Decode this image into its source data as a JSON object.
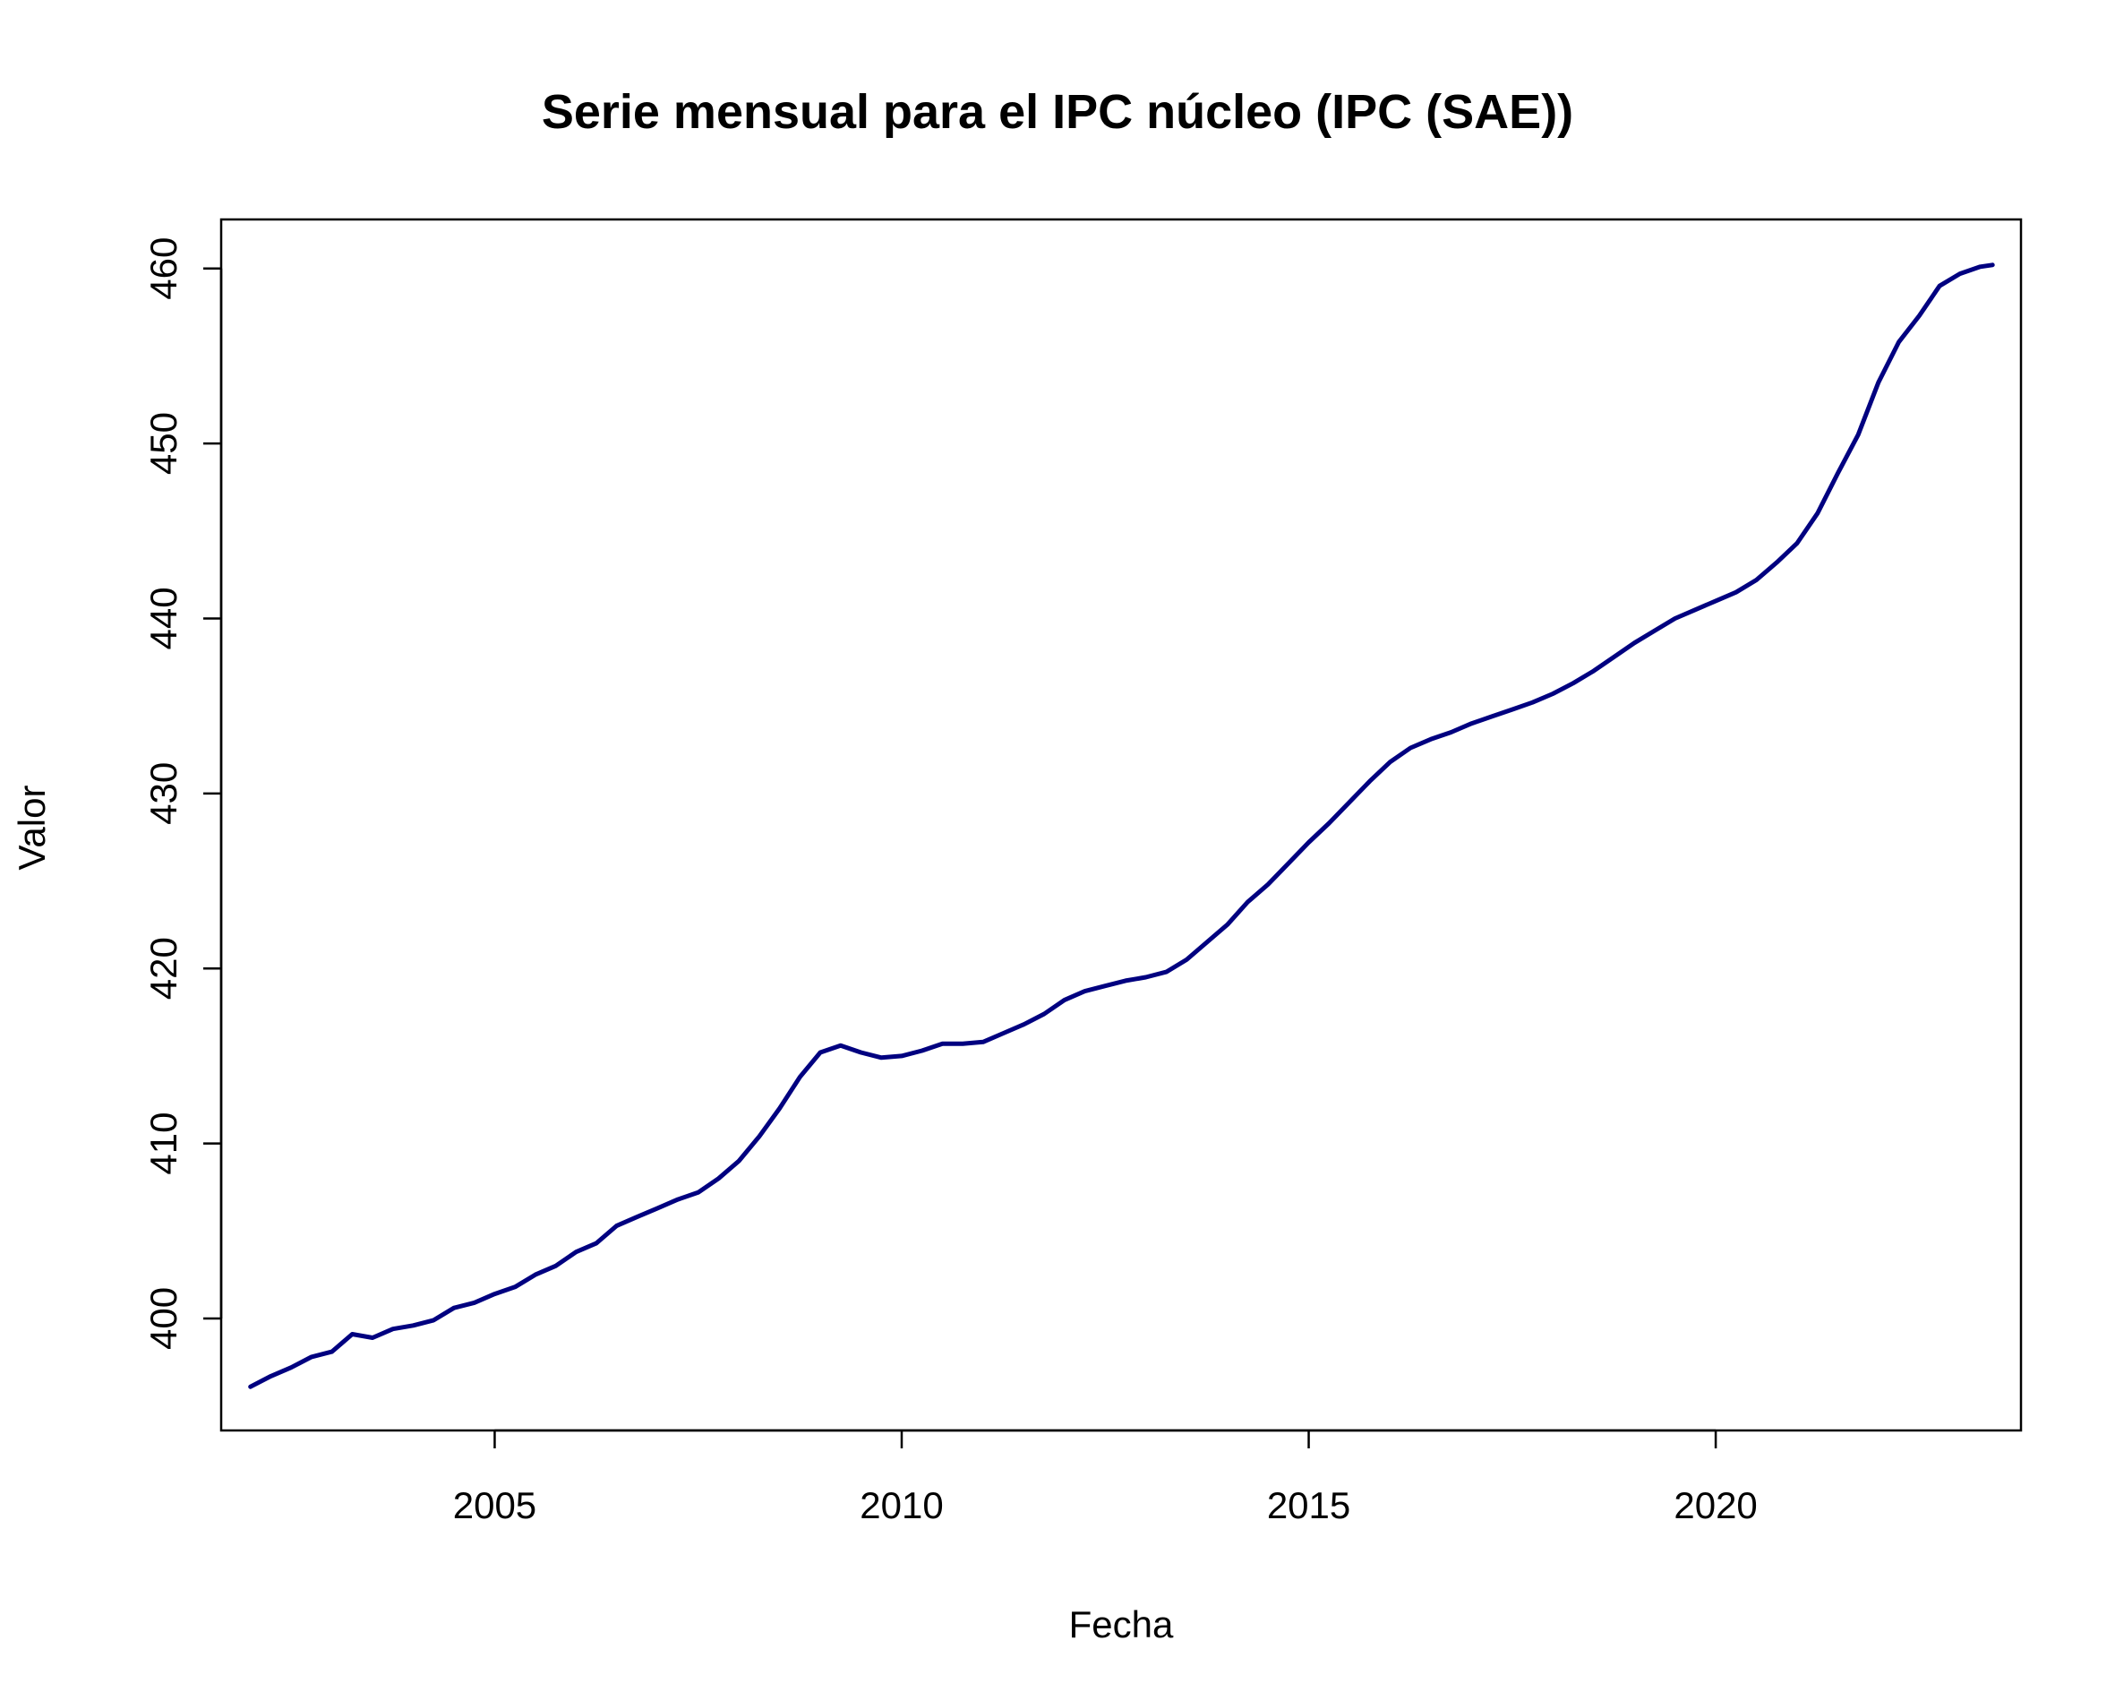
{
  "chart_data": {
    "type": "line",
    "title": "Serie mensual para el IPC núcleo (IPC (SAE))",
    "xlabel": "Fecha",
    "ylabel": "Valor",
    "xlim": [
      2001.64,
      2023.75
    ],
    "ylim": [
      393.6,
      462.8
    ],
    "xticks": [
      2005,
      2010,
      2015,
      2020
    ],
    "yticks": [
      400,
      410,
      420,
      430,
      440,
      450,
      460
    ],
    "grid": false,
    "legend": "none",
    "line_color": "#000080",
    "series": [
      {
        "x": [
          2002.0,
          2002.25,
          2002.5,
          2002.75,
          2003.0,
          2003.25,
          2003.5,
          2003.75,
          2004.0,
          2004.25,
          2004.5,
          2004.75,
          2005.0,
          2005.25,
          2005.5,
          2005.75,
          2006.0,
          2006.25,
          2006.5,
          2006.75,
          2007.0,
          2007.25,
          2007.5,
          2007.75,
          2008.0,
          2008.25,
          2008.5,
          2008.75,
          2009.0,
          2009.25,
          2009.5,
          2009.75,
          2010.0,
          2010.25,
          2010.5,
          2010.75,
          2011.0,
          2011.25,
          2011.5,
          2011.75,
          2012.0,
          2012.25,
          2012.5,
          2012.75,
          2013.0,
          2013.25,
          2013.5,
          2013.75,
          2014.0,
          2014.25,
          2014.5,
          2014.75,
          2015.0,
          2015.25,
          2015.5,
          2015.75,
          2016.0,
          2016.25,
          2016.5,
          2016.75,
          2017.0,
          2017.25,
          2017.5,
          2017.75,
          2018.0,
          2018.25,
          2018.5,
          2018.75,
          2019.0,
          2019.25,
          2019.5,
          2019.75,
          2020.0,
          2020.25,
          2020.5,
          2020.75,
          2021.0,
          2021.25,
          2021.5,
          2021.75,
          2022.0,
          2022.25,
          2022.5,
          2022.75,
          2023.0,
          2023.25,
          2023.4
        ],
        "values": [
          396.1,
          396.7,
          397.2,
          397.8,
          398.1,
          399.1,
          398.9,
          399.4,
          399.6,
          399.9,
          400.6,
          400.9,
          401.4,
          401.8,
          402.5,
          403.0,
          403.8,
          404.3,
          405.3,
          405.8,
          406.3,
          406.8,
          407.2,
          408.0,
          409.0,
          410.4,
          412.0,
          413.8,
          415.2,
          415.6,
          415.2,
          414.9,
          415.0,
          415.3,
          415.7,
          415.7,
          415.8,
          416.3,
          416.8,
          417.4,
          418.2,
          418.7,
          419.0,
          419.3,
          419.5,
          419.8,
          420.5,
          421.5,
          422.5,
          423.8,
          424.8,
          426.0,
          427.2,
          428.3,
          429.5,
          430.7,
          431.8,
          432.6,
          433.1,
          433.5,
          434.0,
          434.4,
          434.8,
          435.2,
          435.7,
          436.3,
          437.0,
          437.8,
          438.6,
          439.3,
          440.0,
          440.5,
          441.0,
          441.5,
          442.2,
          443.2,
          444.3,
          446.0,
          448.3,
          450.5,
          453.5,
          455.8,
          457.3,
          459.0,
          459.7,
          460.1,
          460.2
        ]
      }
    ]
  }
}
